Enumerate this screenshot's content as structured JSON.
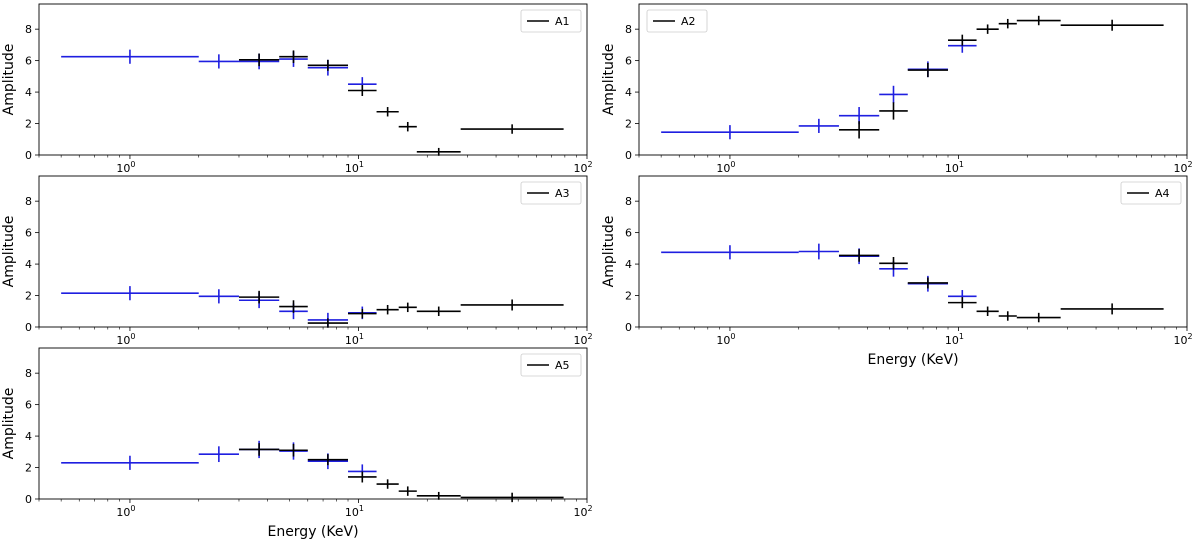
{
  "colors": {
    "instrument_a": "#1f1fe0",
    "instrument_b": "#000000"
  },
  "chart_data": [
    {
      "type": "errorbar",
      "legend": "A1",
      "legend_position": "top-right",
      "xscale": "log",
      "xlim": [
        0.4,
        100
      ],
      "ylim": [
        0,
        9.6
      ],
      "xlabel": "",
      "ylabel": "Amplitude",
      "yticks": [
        "0",
        "2",
        "4",
        "6",
        "8"
      ],
      "xticks": [
        {
          "base": "10",
          "exp": "0"
        },
        {
          "base": "10",
          "exp": "1"
        },
        {
          "base": "10",
          "exp": "2"
        }
      ],
      "series": [
        {
          "name": "instrument_a",
          "color": "#1f1fe0",
          "points": [
            {
              "x0": 0.5,
              "x1": 2.0,
              "y": 6.25,
              "yerr": 0.45
            },
            {
              "x0": 2.0,
              "x1": 3.0,
              "y": 5.95,
              "yerr": 0.45
            },
            {
              "x0": 3.0,
              "x1": 4.5,
              "y": 5.95,
              "yerr": 0.5
            },
            {
              "x0": 4.5,
              "x1": 6.0,
              "y": 6.1,
              "yerr": 0.5
            },
            {
              "x0": 6.0,
              "x1": 9.0,
              "y": 5.55,
              "yerr": 0.5
            },
            {
              "x0": 9.0,
              "x1": 12.0,
              "y": 4.5,
              "yerr": 0.45
            }
          ]
        },
        {
          "name": "instrument_b",
          "color": "#000000",
          "points": [
            {
              "x0": 3.0,
              "x1": 4.5,
              "y": 6.05,
              "yerr": 0.4
            },
            {
              "x0": 4.5,
              "x1": 6.0,
              "y": 6.25,
              "yerr": 0.4
            },
            {
              "x0": 6.0,
              "x1": 9.0,
              "y": 5.7,
              "yerr": 0.35
            },
            {
              "x0": 9.0,
              "x1": 12.0,
              "y": 4.1,
              "yerr": 0.35
            },
            {
              "x0": 12.0,
              "x1": 15.0,
              "y": 2.75,
              "yerr": 0.3
            },
            {
              "x0": 15.0,
              "x1": 18.0,
              "y": 1.8,
              "yerr": 0.3
            },
            {
              "x0": 18.0,
              "x1": 28.0,
              "y": 0.2,
              "yerr": 0.25
            },
            {
              "x0": 28.0,
              "x1": 79.0,
              "y": 1.65,
              "yerr": 0.3
            }
          ]
        }
      ]
    },
    {
      "type": "errorbar",
      "legend": "A2",
      "legend_position": "top-left",
      "xscale": "log",
      "xlim": [
        0.4,
        100
      ],
      "ylim": [
        0,
        9.6
      ],
      "xlabel": "",
      "ylabel": "Amplitude",
      "yticks": [
        "0",
        "2",
        "4",
        "6",
        "8"
      ],
      "xticks": [
        {
          "base": "10",
          "exp": "0"
        },
        {
          "base": "10",
          "exp": "1"
        },
        {
          "base": "10",
          "exp": "2"
        }
      ],
      "series": [
        {
          "name": "instrument_a",
          "color": "#1f1fe0",
          "points": [
            {
              "x0": 0.5,
              "x1": 2.0,
              "y": 1.45,
              "yerr": 0.45
            },
            {
              "x0": 2.0,
              "x1": 3.0,
              "y": 1.85,
              "yerr": 0.45
            },
            {
              "x0": 3.0,
              "x1": 4.5,
              "y": 2.5,
              "yerr": 0.55
            },
            {
              "x0": 4.5,
              "x1": 6.0,
              "y": 3.85,
              "yerr": 0.55
            },
            {
              "x0": 6.0,
              "x1": 9.0,
              "y": 5.45,
              "yerr": 0.5
            },
            {
              "x0": 9.0,
              "x1": 12.0,
              "y": 6.95,
              "yerr": 0.45
            }
          ]
        },
        {
          "name": "instrument_b",
          "color": "#000000",
          "points": [
            {
              "x0": 3.0,
              "x1": 4.5,
              "y": 1.6,
              "yerr": 0.55
            },
            {
              "x0": 4.5,
              "x1": 6.0,
              "y": 2.8,
              "yerr": 0.55
            },
            {
              "x0": 6.0,
              "x1": 9.0,
              "y": 5.4,
              "yerr": 0.45
            },
            {
              "x0": 9.0,
              "x1": 12.0,
              "y": 7.3,
              "yerr": 0.35
            },
            {
              "x0": 12.0,
              "x1": 15.0,
              "y": 8.0,
              "yerr": 0.3
            },
            {
              "x0": 15.0,
              "x1": 18.0,
              "y": 8.35,
              "yerr": 0.3
            },
            {
              "x0": 18.0,
              "x1": 28.0,
              "y": 8.55,
              "yerr": 0.3
            },
            {
              "x0": 28.0,
              "x1": 79.0,
              "y": 8.25,
              "yerr": 0.35
            }
          ]
        }
      ]
    },
    {
      "type": "errorbar",
      "legend": "A3",
      "legend_position": "top-right",
      "xscale": "log",
      "xlim": [
        0.4,
        100
      ],
      "ylim": [
        0,
        9.6
      ],
      "xlabel": "",
      "ylabel": "Amplitude",
      "yticks": [
        "0",
        "2",
        "4",
        "6",
        "8"
      ],
      "xticks": [
        {
          "base": "10",
          "exp": "0"
        },
        {
          "base": "10",
          "exp": "1"
        },
        {
          "base": "10",
          "exp": "2"
        }
      ],
      "series": [
        {
          "name": "instrument_a",
          "color": "#1f1fe0",
          "points": [
            {
              "x0": 0.5,
              "x1": 2.0,
              "y": 2.15,
              "yerr": 0.45
            },
            {
              "x0": 2.0,
              "x1": 3.0,
              "y": 1.95,
              "yerr": 0.45
            },
            {
              "x0": 3.0,
              "x1": 4.5,
              "y": 1.7,
              "yerr": 0.5
            },
            {
              "x0": 4.5,
              "x1": 6.0,
              "y": 1.0,
              "yerr": 0.5
            },
            {
              "x0": 6.0,
              "x1": 9.0,
              "y": 0.45,
              "yerr": 0.45
            },
            {
              "x0": 9.0,
              "x1": 12.0,
              "y": 0.9,
              "yerr": 0.4
            }
          ]
        },
        {
          "name": "instrument_b",
          "color": "#000000",
          "points": [
            {
              "x0": 3.0,
              "x1": 4.5,
              "y": 1.9,
              "yerr": 0.4
            },
            {
              "x0": 4.5,
              "x1": 6.0,
              "y": 1.3,
              "yerr": 0.4
            },
            {
              "x0": 6.0,
              "x1": 9.0,
              "y": 0.25,
              "yerr": 0.3
            },
            {
              "x0": 9.0,
              "x1": 12.0,
              "y": 0.85,
              "yerr": 0.3
            },
            {
              "x0": 12.0,
              "x1": 15.0,
              "y": 1.1,
              "yerr": 0.3
            },
            {
              "x0": 15.0,
              "x1": 18.0,
              "y": 1.25,
              "yerr": 0.3
            },
            {
              "x0": 18.0,
              "x1": 28.0,
              "y": 1.0,
              "yerr": 0.3
            },
            {
              "x0": 28.0,
              "x1": 79.0,
              "y": 1.4,
              "yerr": 0.35
            }
          ]
        }
      ]
    },
    {
      "type": "errorbar",
      "legend": "A4",
      "legend_position": "top-right",
      "xscale": "log",
      "xlim": [
        0.4,
        100
      ],
      "ylim": [
        0,
        9.6
      ],
      "xlabel": "Energy (KeV)",
      "ylabel": "Amplitude",
      "yticks": [
        "0",
        "2",
        "4",
        "6",
        "8"
      ],
      "xticks": [
        {
          "base": "10",
          "exp": "0"
        },
        {
          "base": "10",
          "exp": "1"
        },
        {
          "base": "10",
          "exp": "2"
        }
      ],
      "series": [
        {
          "name": "instrument_a",
          "color": "#1f1fe0",
          "points": [
            {
              "x0": 0.5,
              "x1": 2.0,
              "y": 4.75,
              "yerr": 0.45
            },
            {
              "x0": 2.0,
              "x1": 3.0,
              "y": 4.8,
              "yerr": 0.5
            },
            {
              "x0": 3.0,
              "x1": 4.5,
              "y": 4.5,
              "yerr": 0.5
            },
            {
              "x0": 4.5,
              "x1": 6.0,
              "y": 3.7,
              "yerr": 0.5
            },
            {
              "x0": 6.0,
              "x1": 9.0,
              "y": 2.75,
              "yerr": 0.5
            },
            {
              "x0": 9.0,
              "x1": 12.0,
              "y": 1.95,
              "yerr": 0.4
            }
          ]
        },
        {
          "name": "instrument_b",
          "color": "#000000",
          "points": [
            {
              "x0": 3.0,
              "x1": 4.5,
              "y": 4.55,
              "yerr": 0.4
            },
            {
              "x0": 4.5,
              "x1": 6.0,
              "y": 4.05,
              "yerr": 0.4
            },
            {
              "x0": 6.0,
              "x1": 9.0,
              "y": 2.8,
              "yerr": 0.35
            },
            {
              "x0": 9.0,
              "x1": 12.0,
              "y": 1.55,
              "yerr": 0.35
            },
            {
              "x0": 12.0,
              "x1": 15.0,
              "y": 1.0,
              "yerr": 0.3
            },
            {
              "x0": 15.0,
              "x1": 18.0,
              "y": 0.7,
              "yerr": 0.3
            },
            {
              "x0": 18.0,
              "x1": 28.0,
              "y": 0.6,
              "yerr": 0.3
            },
            {
              "x0": 28.0,
              "x1": 79.0,
              "y": 1.15,
              "yerr": 0.35
            }
          ]
        }
      ]
    },
    {
      "type": "errorbar",
      "legend": "A5",
      "legend_position": "top-right",
      "xscale": "log",
      "xlim": [
        0.4,
        100
      ],
      "ylim": [
        0,
        9.6
      ],
      "xlabel": "Energy (KeV)",
      "ylabel": "Amplitude",
      "yticks": [
        "0",
        "2",
        "4",
        "6",
        "8"
      ],
      "xticks": [
        {
          "base": "10",
          "exp": "0"
        },
        {
          "base": "10",
          "exp": "1"
        },
        {
          "base": "10",
          "exp": "2"
        }
      ],
      "series": [
        {
          "name": "instrument_a",
          "color": "#1f1fe0",
          "points": [
            {
              "x0": 0.5,
              "x1": 2.0,
              "y": 2.3,
              "yerr": 0.45
            },
            {
              "x0": 2.0,
              "x1": 3.0,
              "y": 2.85,
              "yerr": 0.5
            },
            {
              "x0": 3.0,
              "x1": 4.5,
              "y": 3.15,
              "yerr": 0.55
            },
            {
              "x0": 4.5,
              "x1": 6.0,
              "y": 3.05,
              "yerr": 0.55
            },
            {
              "x0": 6.0,
              "x1": 9.0,
              "y": 2.4,
              "yerr": 0.5
            },
            {
              "x0": 9.0,
              "x1": 12.0,
              "y": 1.75,
              "yerr": 0.45
            }
          ]
        },
        {
          "name": "instrument_b",
          "color": "#000000",
          "points": [
            {
              "x0": 3.0,
              "x1": 4.5,
              "y": 3.15,
              "yerr": 0.4
            },
            {
              "x0": 4.5,
              "x1": 6.0,
              "y": 3.1,
              "yerr": 0.4
            },
            {
              "x0": 6.0,
              "x1": 9.0,
              "y": 2.5,
              "yerr": 0.35
            },
            {
              "x0": 9.0,
              "x1": 12.0,
              "y": 1.4,
              "yerr": 0.35
            },
            {
              "x0": 12.0,
              "x1": 15.0,
              "y": 0.95,
              "yerr": 0.3
            },
            {
              "x0": 15.0,
              "x1": 18.0,
              "y": 0.5,
              "yerr": 0.3
            },
            {
              "x0": 18.0,
              "x1": 28.0,
              "y": 0.2,
              "yerr": 0.25
            },
            {
              "x0": 28.0,
              "x1": 79.0,
              "y": 0.1,
              "yerr": 0.3
            }
          ]
        }
      ]
    }
  ]
}
